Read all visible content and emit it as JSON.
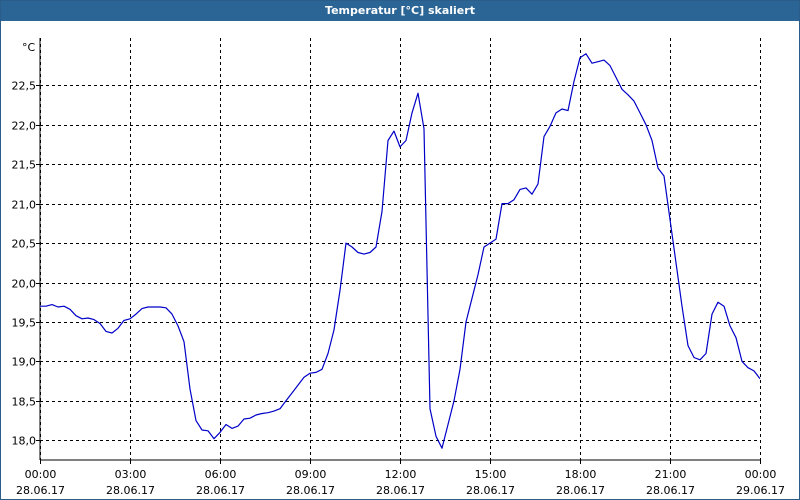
{
  "window": {
    "title": "Temperatur [°C] skaliert"
  },
  "chart_data": {
    "type": "line",
    "title": "Temperatur [°C] skaliert",
    "ylabel": "°C",
    "xlabel": "",
    "ylim": [
      17.75,
      23.1
    ],
    "yticks": [
      "18,0",
      "18,5",
      "19,0",
      "19,5",
      "20,0",
      "20,5",
      "21,0",
      "21,5",
      "22,0",
      "22,5"
    ],
    "ytick_values": [
      18.0,
      18.5,
      19.0,
      19.5,
      20.0,
      20.5,
      21.0,
      21.5,
      22.0,
      22.5
    ],
    "xticks": [
      {
        "time": "00:00",
        "date": "28.06.17"
      },
      {
        "time": "03:00",
        "date": "28.06.17"
      },
      {
        "time": "06:00",
        "date": "28.06.17"
      },
      {
        "time": "09:00",
        "date": "28.06.17"
      },
      {
        "time": "12:00",
        "date": "28.06.17"
      },
      {
        "time": "15:00",
        "date": "28.06.17"
      },
      {
        "time": "18:00",
        "date": "28.06.17"
      },
      {
        "time": "21:00",
        "date": "28.06.17"
      },
      {
        "time": "00:00",
        "date": "29.06.17"
      }
    ],
    "xlim_hours": [
      0,
      24
    ],
    "grid": true,
    "series": [
      {
        "color": "#0000c8",
        "x": [
          0,
          0.2,
          0.4,
          0.6,
          0.8,
          1.0,
          1.2,
          1.4,
          1.6,
          1.8,
          2.0,
          2.2,
          2.4,
          2.6,
          2.8,
          3.0,
          3.2,
          3.4,
          3.6,
          3.8,
          4.0,
          4.2,
          4.4,
          4.6,
          4.8,
          5.0,
          5.2,
          5.4,
          5.6,
          5.8,
          6.0,
          6.2,
          6.4,
          6.6,
          6.8,
          7.0,
          7.2,
          7.4,
          7.6,
          7.8,
          8.0,
          8.2,
          8.4,
          8.6,
          8.8,
          9.0,
          9.2,
          9.4,
          9.6,
          9.8,
          10.0,
          10.2,
          10.4,
          10.6,
          10.8,
          11.0,
          11.2,
          11.4,
          11.6,
          11.8,
          12.0,
          12.2,
          12.4,
          12.6,
          12.8,
          13.0,
          13.2,
          13.4,
          13.6,
          13.8,
          14.0,
          14.2,
          14.4,
          14.6,
          14.8,
          15.0,
          15.2,
          15.4,
          15.6,
          15.8,
          16.0,
          16.2,
          16.4,
          16.6,
          16.8,
          17.0,
          17.2,
          17.4,
          17.6,
          17.8,
          18.0,
          18.2,
          18.4,
          18.6,
          18.8,
          19.0,
          19.2,
          19.4,
          19.6,
          19.8,
          20.0,
          20.2,
          20.4,
          20.6,
          20.8,
          21.0,
          21.2,
          21.4,
          21.6,
          21.8,
          22.0,
          22.2,
          22.4,
          22.6,
          22.8,
          23.0,
          23.2,
          23.4,
          23.6,
          23.8,
          24.0
        ],
        "values": [
          19.7,
          19.7,
          19.72,
          19.69,
          19.7,
          19.66,
          19.58,
          19.54,
          19.55,
          19.53,
          19.48,
          19.38,
          19.36,
          19.42,
          19.52,
          19.54,
          19.6,
          19.67,
          19.69,
          19.69,
          19.69,
          19.68,
          19.6,
          19.45,
          19.25,
          18.65,
          18.25,
          18.13,
          18.12,
          18.02,
          18.1,
          18.2,
          18.15,
          18.18,
          18.27,
          18.28,
          18.32,
          18.34,
          18.35,
          18.37,
          18.4,
          18.5,
          18.6,
          18.7,
          18.8,
          18.85,
          18.86,
          18.9,
          19.1,
          19.4,
          19.9,
          20.5,
          20.45,
          20.38,
          20.36,
          20.38,
          20.45,
          20.9,
          21.8,
          21.92,
          21.72,
          21.8,
          22.15,
          22.4,
          21.95,
          18.4,
          18.05,
          17.9,
          18.2,
          18.5,
          18.9,
          19.5,
          19.8,
          20.1,
          20.45,
          20.5,
          20.55,
          21.0,
          21.0,
          21.05,
          21.18,
          21.2,
          21.12,
          21.25,
          21.85,
          21.98,
          22.15,
          22.2,
          22.18,
          22.55,
          22.85,
          22.9,
          22.78,
          22.8,
          22.82,
          22.75,
          22.6,
          22.45,
          22.38,
          22.3,
          22.15,
          22.0,
          21.8,
          21.45,
          21.35,
          20.8,
          20.25,
          19.7,
          19.2,
          19.05,
          19.02,
          19.1,
          19.6,
          19.75,
          19.7,
          19.45,
          19.3,
          19.0,
          18.92,
          18.88,
          18.78
        ]
      }
    ]
  }
}
